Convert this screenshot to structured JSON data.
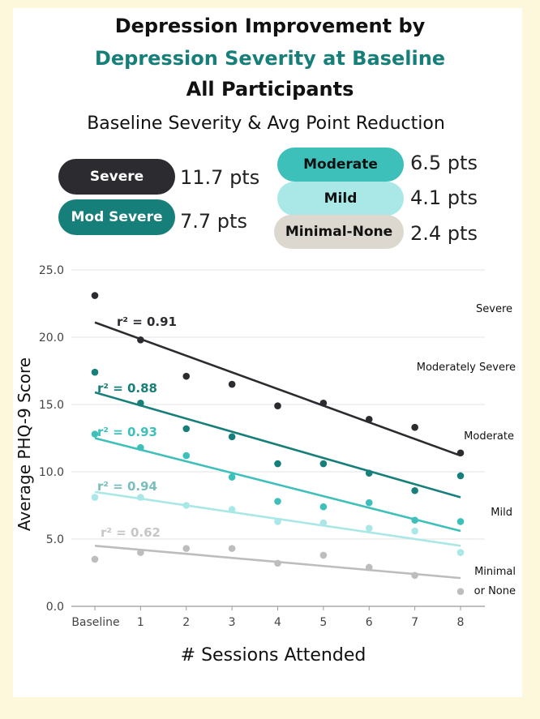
{
  "titles": {
    "line1": "Depression Improvement by",
    "line2": "Depression Severity at Baseline",
    "line3": "All Participants"
  },
  "legend": {
    "heading": "Baseline Severity & Avg Point Reduction",
    "items": [
      {
        "label": "Severe",
        "points": "11.7 pts",
        "color": "#2c2b30",
        "text_color": "#ffffff"
      },
      {
        "label": "Mod Severe",
        "points": "7.7 pts",
        "color": "#177f7a",
        "text_color": "#ffffff"
      },
      {
        "label": "Moderate",
        "points": "6.5 pts",
        "color": "#3dbfba",
        "text_color": "#111111"
      },
      {
        "label": "Mild",
        "points": "4.1 pts",
        "color": "#a9e8e6",
        "text_color": "#111111"
      },
      {
        "label": "Minimal-None",
        "points": "2.4 pts",
        "color": "#dcd8cf",
        "text_color": "#111111"
      }
    ]
  },
  "chart_data": {
    "type": "scatter",
    "xlabel": "# Sessions Attended",
    "ylabel": "Average PHQ-9 Score",
    "categories": [
      "Baseline",
      "1",
      "2",
      "3",
      "4",
      "5",
      "6",
      "7",
      "8"
    ],
    "ylim": [
      0,
      25
    ],
    "yticks": [
      "0.0",
      "5.0",
      "10.0",
      "15.0",
      "20.0",
      "25.0"
    ],
    "grid": true,
    "series": [
      {
        "name": "Severe",
        "color": "#2c2b30",
        "values": [
          23.1,
          19.8,
          17.1,
          16.5,
          14.9,
          15.1,
          13.9,
          13.3,
          11.4
        ],
        "trend": [
          21.1,
          11.2
        ],
        "r2_label": "r² = 0.91",
        "label_lines": [
          "Severe"
        ]
      },
      {
        "name": "Moderately Severe",
        "color": "#177f7a",
        "values": [
          17.4,
          15.1,
          13.2,
          12.6,
          10.6,
          10.6,
          9.9,
          8.6,
          9.7
        ],
        "trend": [
          15.9,
          8.1
        ],
        "r2_label": "r² = 0.88",
        "label_lines": [
          "Moderately Severe"
        ]
      },
      {
        "name": "Moderate",
        "color": "#3dbfba",
        "values": [
          12.8,
          11.8,
          11.2,
          9.6,
          7.8,
          7.4,
          7.7,
          6.4,
          6.3
        ],
        "trend": [
          12.5,
          5.6
        ],
        "r2_label": "r² = 0.93",
        "label_lines": [
          "Moderate"
        ]
      },
      {
        "name": "Mild",
        "color": "#a9e8e6",
        "values": [
          8.1,
          8.1,
          7.5,
          7.2,
          6.3,
          6.2,
          5.8,
          5.6,
          4.0
        ],
        "trend": [
          8.5,
          4.5
        ],
        "r2_label": "r² = 0.94",
        "label_lines": [
          "Mild"
        ]
      },
      {
        "name": "Minimal or None",
        "color": "#bdbdbd",
        "values": [
          3.5,
          4.0,
          4.3,
          4.3,
          3.2,
          3.8,
          2.9,
          2.3,
          1.1
        ],
        "trend": [
          4.5,
          2.1
        ],
        "r2_label": "r² = 0.62",
        "label_lines": [
          "Minimal",
          "or None"
        ]
      }
    ]
  }
}
